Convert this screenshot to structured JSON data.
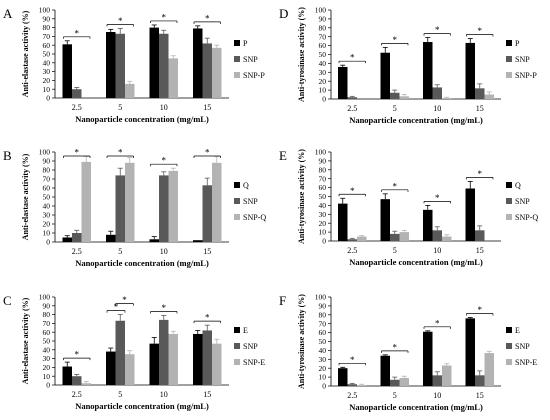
{
  "colors": {
    "s0": "#000000",
    "s1": "#595959",
    "s2": "#b3b3b3"
  },
  "chart_data": [
    {
      "type": "bar",
      "panel_label": "A",
      "ylabel": "Anti-elastase activity (%)",
      "xlabel": "Nanoparticle concentration (mg/mL)",
      "categories": [
        "2.5",
        "5",
        "10",
        "15"
      ],
      "ylim": [
        0,
        100
      ],
      "yticks": [
        "0",
        "10",
        "20",
        "30",
        "40",
        "50",
        "60",
        "70",
        "80",
        "90",
        "100"
      ],
      "series": [
        {
          "name": "P",
          "values": [
            61,
            75,
            80,
            79
          ],
          "errors": [
            4,
            3,
            3,
            3
          ]
        },
        {
          "name": "SNP",
          "values": [
            10,
            73,
            73,
            62
          ],
          "errors": [
            2,
            6,
            4,
            6
          ]
        },
        {
          "name": "SNP-P",
          "values": [
            0,
            16,
            45,
            57
          ],
          "errors": [
            0,
            3,
            3,
            3
          ]
        }
      ],
      "significance": [
        {
          "category": "2.5",
          "label": "*"
        },
        {
          "category": "5",
          "label": "*"
        },
        {
          "category": "10",
          "label": "*"
        },
        {
          "category": "15",
          "label": "*"
        }
      ]
    },
    {
      "type": "bar",
      "panel_label": "B",
      "ylabel": "Anti-elastase activity (%)",
      "xlabel": "Nanoparticle concentration (mg/mL)",
      "categories": [
        "2.5",
        "5",
        "10",
        "15"
      ],
      "ylim": [
        0,
        100
      ],
      "yticks": [
        "0",
        "10",
        "20",
        "30",
        "40",
        "50",
        "60",
        "70",
        "80",
        "90",
        "100"
      ],
      "series": [
        {
          "name": "Q",
          "values": [
            5,
            8,
            3,
            2
          ],
          "errors": [
            2,
            4,
            3,
            0
          ]
        },
        {
          "name": "SNP",
          "values": [
            10,
            74,
            74,
            63
          ],
          "errors": [
            3,
            8,
            4,
            8
          ]
        },
        {
          "name": "SNP-Q",
          "values": [
            89,
            88,
            79,
            88
          ],
          "errors": [
            6,
            6,
            3,
            7
          ]
        }
      ],
      "significance": [
        {
          "category": "2.5",
          "label": "*"
        },
        {
          "category": "5",
          "label": "*"
        },
        {
          "category": "10",
          "label": "*"
        },
        {
          "category": "15",
          "label": "*"
        }
      ]
    },
    {
      "type": "bar",
      "panel_label": "C",
      "ylabel": "Anti-elastase activity (%)",
      "xlabel": "Nanoparticle concentration (mg/mL)",
      "categories": [
        "2.5",
        "5",
        "10",
        "15"
      ],
      "ylim": [
        0,
        100
      ],
      "yticks": [
        "0",
        "10",
        "20",
        "30",
        "40",
        "50",
        "60",
        "70",
        "80",
        "90",
        "100"
      ],
      "series": [
        {
          "name": "E",
          "values": [
            21,
            38,
            47,
            58
          ],
          "errors": [
            5,
            4,
            7,
            4
          ]
        },
        {
          "name": "SNP",
          "values": [
            10,
            73,
            74,
            62
          ],
          "errors": [
            2,
            7,
            5,
            6
          ]
        },
        {
          "name": "SNP-E",
          "values": [
            2,
            35,
            58,
            47
          ],
          "errors": [
            2,
            4,
            3,
            5
          ]
        }
      ],
      "significance": [
        {
          "category": "2.5",
          "label": "*"
        },
        {
          "category": "5",
          "label": "*"
        },
        {
          "category": "5",
          "label": "*"
        },
        {
          "category": "10",
          "label": "*"
        },
        {
          "category": "15",
          "label": "*"
        }
      ]
    },
    {
      "type": "bar",
      "panel_label": "D",
      "ylabel": "Anti-tyrosinase activity (%)",
      "xlabel": "Nanoparticle concentration (mg/mL)",
      "categories": [
        "2.5",
        "5",
        "10",
        "15"
      ],
      "ylim": [
        0,
        100
      ],
      "yticks": [
        "0",
        "10",
        "20",
        "30",
        "40",
        "50",
        "60",
        "70",
        "80",
        "90",
        "100"
      ],
      "series": [
        {
          "name": "P",
          "values": [
            36,
            52,
            64,
            63
          ],
          "errors": [
            2,
            6,
            5,
            5
          ]
        },
        {
          "name": "SNP",
          "values": [
            2,
            7,
            13,
            12
          ],
          "errors": [
            1,
            3,
            3,
            5
          ]
        },
        {
          "name": "SNP-P",
          "values": [
            0,
            3,
            1,
            5
          ],
          "errors": [
            0,
            2,
            1,
            3
          ]
        }
      ],
      "significance": [
        {
          "category": "2.5",
          "label": "*"
        },
        {
          "category": "5",
          "label": "*"
        },
        {
          "category": "10",
          "label": "*"
        },
        {
          "category": "15",
          "label": "*"
        }
      ]
    },
    {
      "type": "bar",
      "panel_label": "E",
      "ylabel": "Anti-tyrosinase activity (%)",
      "xlabel": "Nanoparticle concentration (mg/mL)",
      "categories": [
        "2.5",
        "5",
        "10",
        "15"
      ],
      "ylim": [
        0,
        100
      ],
      "yticks": [
        "0",
        "10",
        "20",
        "30",
        "40",
        "50",
        "60",
        "70",
        "80",
        "90",
        "100"
      ],
      "series": [
        {
          "name": "Q",
          "values": [
            42,
            47,
            35,
            59
          ],
          "errors": [
            6,
            6,
            5,
            8
          ]
        },
        {
          "name": "SNP",
          "values": [
            2,
            8,
            12,
            12
          ],
          "errors": [
            1,
            3,
            4,
            5
          ]
        },
        {
          "name": "SNP-Q",
          "values": [
            5,
            10,
            5,
            0
          ],
          "errors": [
            1,
            2,
            2,
            0
          ]
        }
      ],
      "significance": [
        {
          "category": "2.5",
          "label": "*"
        },
        {
          "category": "5",
          "label": "*"
        },
        {
          "category": "10",
          "label": "*"
        },
        {
          "category": "15",
          "label": "*"
        }
      ]
    },
    {
      "type": "bar",
      "panel_label": "F",
      "ylabel": "Anti-tyrosinase activity (%)",
      "xlabel": "Nanoparticle concentration (mg/mL)",
      "categories": [
        "2.5",
        "5",
        "10",
        "15"
      ],
      "ylim": [
        0,
        100
      ],
      "yticks": [
        "0",
        "10",
        "20",
        "30",
        "40",
        "50",
        "60",
        "70",
        "80",
        "90",
        "100"
      ],
      "series": [
        {
          "name": "E",
          "values": [
            20,
            34,
            61,
            76
          ],
          "errors": [
            1,
            1,
            1,
            1
          ]
        },
        {
          "name": "SNP",
          "values": [
            2,
            7,
            12,
            12
          ],
          "errors": [
            1,
            3,
            4,
            5
          ]
        },
        {
          "name": "SNP-E",
          "values": [
            1,
            9,
            23,
            37
          ],
          "errors": [
            1,
            2,
            2,
            2
          ]
        }
      ],
      "significance": [
        {
          "category": "2.5",
          "label": "*"
        },
        {
          "category": "5",
          "label": "*"
        },
        {
          "category": "10",
          "label": "*"
        },
        {
          "category": "15",
          "label": "*"
        }
      ]
    }
  ]
}
